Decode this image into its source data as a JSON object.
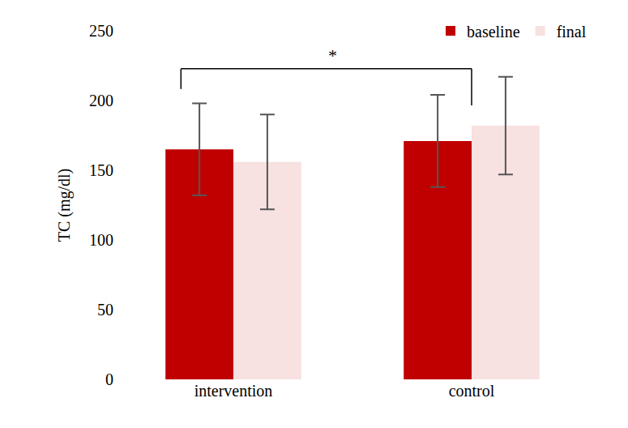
{
  "chart_data": {
    "type": "bar",
    "categories": [
      "intervention",
      "control"
    ],
    "y_label": "TC (mg/dl)",
    "series": [
      {
        "name": "baseline",
        "color": "#c00000",
        "values": [
          165,
          171
        ],
        "error": [
          33,
          33
        ]
      },
      {
        "name": "final",
        "color": "#f8e1e1",
        "values": [
          156,
          182
        ],
        "error": [
          34,
          35
        ]
      }
    ],
    "ylim": [
      0,
      250
    ],
    "yticks": [
      0,
      50,
      100,
      150,
      200,
      250
    ],
    "grid": false,
    "legend": "top right",
    "annotations": [
      {
        "text": "*"
      }
    ]
  }
}
